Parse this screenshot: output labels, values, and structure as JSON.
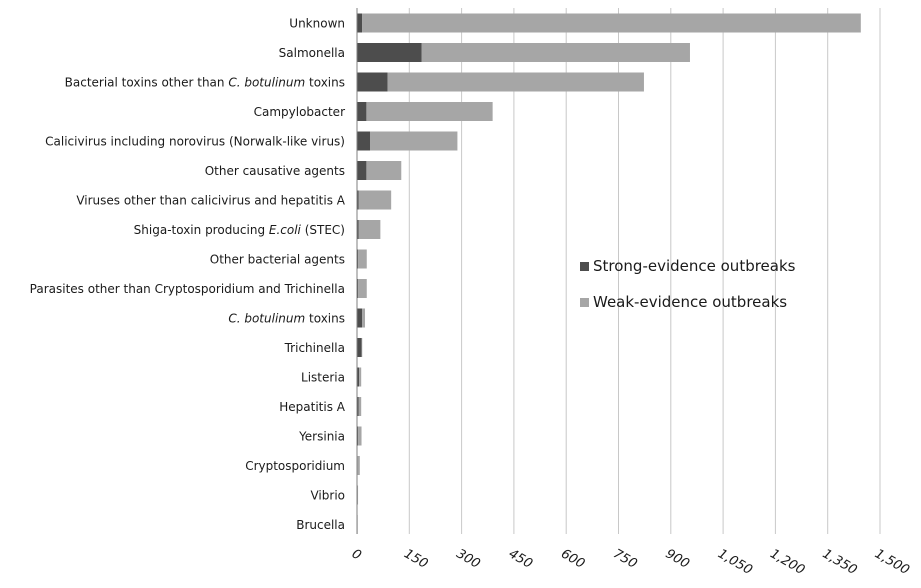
{
  "chart_data": {
    "type": "bar",
    "orientation": "horizontal",
    "stacked": true,
    "categories": [
      "Unknown",
      "Salmonella",
      "Bacterial toxins other than C. botulinum toxins",
      "Campylobacter",
      "Calicivirus including norovirus (Norwalk-like virus)",
      "Other causative agents",
      "Viruses other than calicivirus and hepatitis A",
      "Shiga-toxin producing E.coli (STEC)",
      "Other bacterial agents",
      "Parasites other than Cryptosporidium and Trichinella",
      "C. botulinum toxins",
      "Trichinella",
      "Listeria",
      "Hepatitis A",
      "Yersinia",
      "Cryptosporidium",
      "Vibrio",
      "Brucella"
    ],
    "category_parts": [
      [
        {
          "t": "Unknown",
          "i": false
        }
      ],
      [
        {
          "t": "Salmonella",
          "i": false
        }
      ],
      [
        {
          "t": "Bacterial toxins other than ",
          "i": false
        },
        {
          "t": "C. botulinum",
          "i": true
        },
        {
          "t": " toxins",
          "i": false
        }
      ],
      [
        {
          "t": "Campylobacter",
          "i": false
        }
      ],
      [
        {
          "t": "Calicivirus including norovirus (Norwalk-like virus)",
          "i": false
        }
      ],
      [
        {
          "t": "Other causative agents",
          "i": false
        }
      ],
      [
        {
          "t": "Viruses other than calicivirus and hepatitis A",
          "i": false
        }
      ],
      [
        {
          "t": "Shiga-toxin producing ",
          "i": false
        },
        {
          "t": "E.coli",
          "i": true
        },
        {
          "t": " (STEC)",
          "i": false
        }
      ],
      [
        {
          "t": "Other bacterial agents",
          "i": false
        }
      ],
      [
        {
          "t": "Parasites other than Cryptosporidium and Trichinella",
          "i": false
        }
      ],
      [
        {
          "t": "C. botulinum",
          "i": true
        },
        {
          "t": " toxins",
          "i": false
        }
      ],
      [
        {
          "t": "Trichinella",
          "i": false
        }
      ],
      [
        {
          "t": "Listeria",
          "i": false
        }
      ],
      [
        {
          "t": "Hepatitis A",
          "i": false
        }
      ],
      [
        {
          "t": "Yersinia",
          "i": false
        }
      ],
      [
        {
          "t": "Cryptosporidium",
          "i": false
        }
      ],
      [
        {
          "t": "Vibrio",
          "i": false
        }
      ],
      [
        {
          "t": "Brucella",
          "i": false
        }
      ]
    ],
    "series": [
      {
        "name": "Strong-evidence outbreaks",
        "color": "#4d4d4d",
        "values": [
          15,
          185,
          88,
          27,
          38,
          27,
          5,
          5,
          3,
          3,
          15,
          13,
          6,
          5,
          3,
          2,
          1,
          1
        ]
      },
      {
        "name": "Weak-evidence outbreaks",
        "color": "#a6a6a6",
        "values": [
          1430,
          770,
          735,
          362,
          250,
          100,
          93,
          62,
          25,
          25,
          8,
          2,
          6,
          7,
          10,
          6,
          2,
          1
        ]
      }
    ],
    "xlim": [
      0,
      1500
    ],
    "x_ticks": [
      "0",
      "150",
      "300",
      "450",
      "600",
      "750",
      "900",
      "1,050",
      "1,200",
      "1,350",
      "1,500"
    ],
    "grid": "vertical",
    "legend_position": "right-center",
    "title": "",
    "xlabel": "",
    "ylabel": ""
  },
  "colors": {
    "gridline": "#c8c8c8",
    "axis": "#7f7f7f"
  }
}
